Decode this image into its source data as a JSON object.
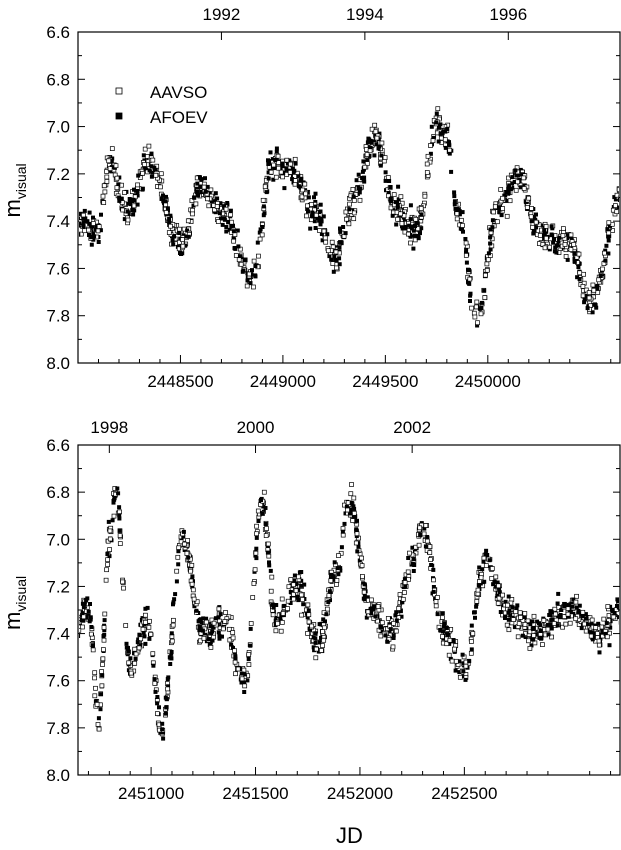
{
  "chart_data": [
    {
      "type": "scatter",
      "panel": "top",
      "ylabel_main": "m",
      "ylabel_sub": "visual",
      "xlabel": "",
      "xlim": [
        2448000,
        2450650
      ],
      "ylim": [
        8.0,
        6.6
      ],
      "y_inverted": true,
      "yticks": [
        "6.6",
        "6.8",
        "7.0",
        "7.2",
        "7.4",
        "7.6",
        "7.8",
        "8.0"
      ],
      "xticks": [
        2448500,
        2449000,
        2449500,
        2450000
      ],
      "xtick_labels": [
        "2448500",
        "2449000",
        "2449500",
        "2450000"
      ],
      "top_year_labels": [
        "1992",
        "1994",
        "1996"
      ],
      "top_year_jd": [
        2448700,
        2449400,
        2450100
      ],
      "legend": [
        {
          "name": "AAVSO",
          "marker": "open-square"
        },
        {
          "name": "AFOEV",
          "marker": "filled-square"
        }
      ],
      "legend_position": "upper-left",
      "grid": false,
      "series_trend": [
        {
          "x": 2448000,
          "y": 7.4
        },
        {
          "x": 2448100,
          "y": 7.45
        },
        {
          "x": 2448150,
          "y": 7.15
        },
        {
          "x": 2448250,
          "y": 7.35
        },
        {
          "x": 2448350,
          "y": 7.15
        },
        {
          "x": 2448500,
          "y": 7.5
        },
        {
          "x": 2448600,
          "y": 7.25
        },
        {
          "x": 2448700,
          "y": 7.35
        },
        {
          "x": 2448850,
          "y": 7.65
        },
        {
          "x": 2448950,
          "y": 7.15
        },
        {
          "x": 2449050,
          "y": 7.2
        },
        {
          "x": 2449150,
          "y": 7.35
        },
        {
          "x": 2449250,
          "y": 7.55
        },
        {
          "x": 2449350,
          "y": 7.3
        },
        {
          "x": 2449450,
          "y": 7.05
        },
        {
          "x": 2449550,
          "y": 7.35
        },
        {
          "x": 2449650,
          "y": 7.45
        },
        {
          "x": 2449750,
          "y": 7.0
        },
        {
          "x": 2449800,
          "y": 7.05
        },
        {
          "x": 2449850,
          "y": 7.35
        },
        {
          "x": 2449950,
          "y": 7.8
        },
        {
          "x": 2450050,
          "y": 7.35
        },
        {
          "x": 2450150,
          "y": 7.2
        },
        {
          "x": 2450250,
          "y": 7.45
        },
        {
          "x": 2450400,
          "y": 7.5
        },
        {
          "x": 2450500,
          "y": 7.75
        },
        {
          "x": 2450650,
          "y": 7.3
        }
      ]
    },
    {
      "type": "scatter",
      "panel": "bottom",
      "ylabel_main": "m",
      "ylabel_sub": "visual",
      "xlabel": "JD",
      "xlim": [
        2450650,
        2453250
      ],
      "ylim": [
        8.0,
        6.6
      ],
      "y_inverted": true,
      "yticks": [
        "6.6",
        "6.8",
        "7.0",
        "7.2",
        "7.4",
        "7.6",
        "7.8",
        "8.0"
      ],
      "xticks": [
        2451000,
        2451500,
        2452000,
        2452500
      ],
      "xtick_labels": [
        "2451000",
        "2451500",
        "2452000",
        "2452500"
      ],
      "top_year_labels": [
        "1998",
        "2000",
        "2002"
      ],
      "top_year_jd": [
        2450800,
        2451500,
        2452250
      ],
      "grid": false,
      "series_trend": [
        {
          "x": 2450650,
          "y": 7.35
        },
        {
          "x": 2450700,
          "y": 7.3
        },
        {
          "x": 2450750,
          "y": 7.75
        },
        {
          "x": 2450800,
          "y": 7.0
        },
        {
          "x": 2450830,
          "y": 6.8
        },
        {
          "x": 2450900,
          "y": 7.55
        },
        {
          "x": 2450980,
          "y": 7.35
        },
        {
          "x": 2451050,
          "y": 7.8
        },
        {
          "x": 2451150,
          "y": 7.0
        },
        {
          "x": 2451250,
          "y": 7.4
        },
        {
          "x": 2451350,
          "y": 7.35
        },
        {
          "x": 2451450,
          "y": 7.6
        },
        {
          "x": 2451530,
          "y": 6.85
        },
        {
          "x": 2451600,
          "y": 7.35
        },
        {
          "x": 2451700,
          "y": 7.2
        },
        {
          "x": 2451800,
          "y": 7.45
        },
        {
          "x": 2451880,
          "y": 7.15
        },
        {
          "x": 2451950,
          "y": 6.85
        },
        {
          "x": 2452050,
          "y": 7.3
        },
        {
          "x": 2452150,
          "y": 7.4
        },
        {
          "x": 2452250,
          "y": 7.1
        },
        {
          "x": 2452300,
          "y": 6.95
        },
        {
          "x": 2452400,
          "y": 7.4
        },
        {
          "x": 2452500,
          "y": 7.55
        },
        {
          "x": 2452600,
          "y": 7.1
        },
        {
          "x": 2452700,
          "y": 7.3
        },
        {
          "x": 2452850,
          "y": 7.4
        },
        {
          "x": 2453000,
          "y": 7.3
        },
        {
          "x": 2453150,
          "y": 7.4
        },
        {
          "x": 2453250,
          "y": 7.3
        }
      ]
    }
  ]
}
